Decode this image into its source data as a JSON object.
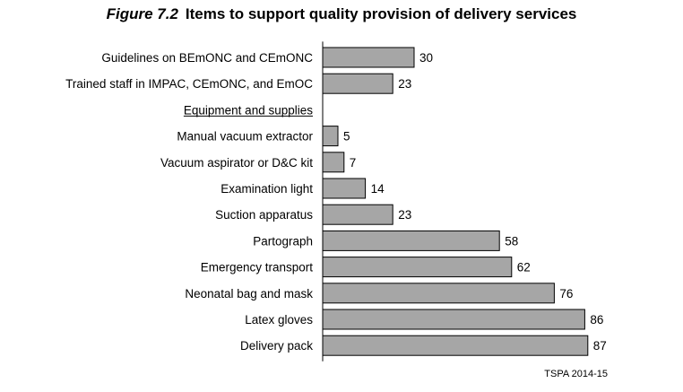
{
  "figure": {
    "label": "Figure 7.2",
    "title": "Items to support quality provision of delivery services",
    "source": "TSPA 2014-15"
  },
  "colors": {
    "bar_fill": "#a6a6a6",
    "bar_stroke": "#000000",
    "axis": "#000000",
    "text": "#000000"
  },
  "chart_data": {
    "type": "bar",
    "orientation": "horizontal",
    "title": "Items to support quality provision of delivery services",
    "xlim": [
      0,
      100
    ],
    "grid": false,
    "legend": "none",
    "rows": [
      {
        "label": "Guidelines on BEmONC and CEmONC",
        "value": 30
      },
      {
        "label": "Trained staff in IMPAC, CEmONC, and EmOC",
        "value": 23
      },
      {
        "label": "Equipment and supplies",
        "value": null,
        "is_heading": true
      },
      {
        "label": "Manual vacuum extractor",
        "value": 5
      },
      {
        "label": "Vacuum aspirator or D&C kit",
        "value": 7
      },
      {
        "label": "Examination light",
        "value": 14
      },
      {
        "label": "Suction apparatus",
        "value": 23
      },
      {
        "label": "Partograph",
        "value": 58
      },
      {
        "label": "Emergency transport",
        "value": 62
      },
      {
        "label": "Neonatal bag and mask",
        "value": 76
      },
      {
        "label": "Latex gloves",
        "value": 86
      },
      {
        "label": "Delivery pack",
        "value": 87
      }
    ]
  }
}
